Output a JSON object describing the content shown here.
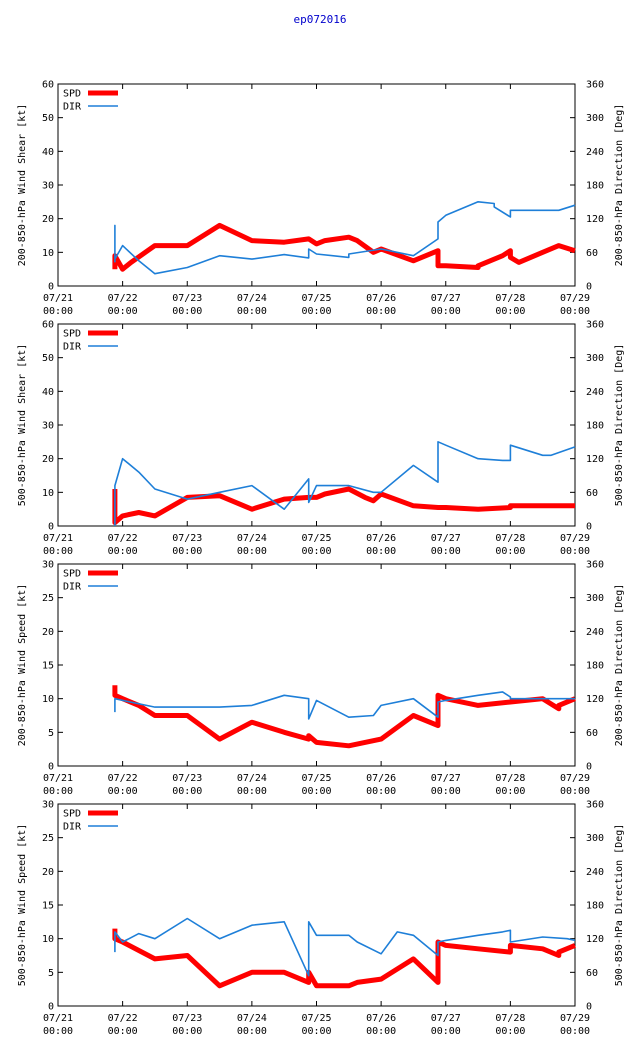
{
  "title": "ep072016",
  "colors": {
    "spd": "#ff0000",
    "dir": "#1e7fd8",
    "frame": "#000000",
    "title": "#0000cc"
  },
  "x_ticks": [
    {
      "line1": "07/21",
      "line2": "00:00",
      "t": 0
    },
    {
      "line1": "07/22",
      "line2": "00:00",
      "t": 1
    },
    {
      "line1": "07/23",
      "line2": "00:00",
      "t": 2
    },
    {
      "line1": "07/24",
      "line2": "00:00",
      "t": 3
    },
    {
      "line1": "07/25",
      "line2": "00:00",
      "t": 4
    },
    {
      "line1": "07/26",
      "line2": "00:00",
      "t": 5
    },
    {
      "line1": "07/27",
      "line2": "00:00",
      "t": 6
    },
    {
      "line1": "07/28",
      "line2": "00:00",
      "t": 7
    },
    {
      "line1": "07/29",
      "line2": "00:00",
      "t": 8
    }
  ],
  "chart_data": [
    {
      "type": "line",
      "ylabel": "200-850-hPa Wind Shear [kt]",
      "y2label": "200-850-hPa Direction [Deg]",
      "xlim": [
        0,
        8
      ],
      "ylim": [
        0,
        60
      ],
      "yticks": [
        0,
        10,
        20,
        30,
        40,
        50,
        60
      ],
      "y2lim": [
        0,
        360
      ],
      "y2ticks": [
        0,
        60,
        120,
        180,
        240,
        300,
        360
      ],
      "legend": [
        "SPD",
        "DIR"
      ],
      "series": [
        {
          "name": "SPD",
          "axis": "left",
          "x": [
            0.88,
            0.88,
            1.0,
            1.13,
            1.5,
            2.0,
            2.5,
            3.0,
            3.5,
            3.88,
            4.0,
            4.13,
            4.5,
            4.63,
            4.88,
            5.0,
            5.5,
            5.88,
            5.88,
            6.0,
            6.5,
            6.5,
            6.88,
            7.0,
            7.0,
            7.13,
            7.5,
            7.75,
            8.0
          ],
          "y": [
            5,
            9,
            5,
            7,
            12,
            12,
            18,
            13.5,
            13,
            14,
            12.5,
            13.5,
            14.5,
            13.5,
            10,
            11,
            7.5,
            10.5,
            6,
            6,
            5.5,
            6,
            9,
            10.5,
            8.5,
            7,
            10,
            12,
            10.5
          ]
        },
        {
          "name": "DIR",
          "axis": "right",
          "x": [
            0.88,
            0.88,
            0.88,
            1.0,
            1.25,
            1.5,
            2.0,
            2.5,
            3.0,
            3.5,
            3.88,
            3.88,
            4.0,
            4.5,
            4.5,
            5.0,
            5.5,
            5.88,
            5.88,
            6.0,
            6.5,
            6.75,
            6.75,
            7.0,
            7.0,
            7.25,
            7.75,
            8.0
          ],
          "y": [
            42,
            108,
            48,
            72,
            45,
            22,
            33,
            54,
            48,
            56,
            50,
            66,
            57,
            51,
            57,
            66,
            54,
            84,
            114,
            126,
            150,
            147,
            141,
            123,
            135,
            135,
            135,
            144
          ]
        }
      ]
    },
    {
      "type": "line",
      "ylabel": "500-850-hPa Wind Shear [kt]",
      "y2label": "500-850-hPa Direction [Deg]",
      "xlim": [
        0,
        8
      ],
      "ylim": [
        0,
        60
      ],
      "yticks": [
        0,
        10,
        20,
        30,
        40,
        50,
        60
      ],
      "y2lim": [
        0,
        360
      ],
      "y2ticks": [
        0,
        60,
        120,
        180,
        240,
        300,
        360
      ],
      "legend": [
        "SPD",
        "DIR"
      ],
      "series": [
        {
          "name": "SPD",
          "axis": "left",
          "x": [
            0.88,
            0.88,
            1.0,
            1.25,
            1.5,
            2.0,
            2.5,
            3.0,
            3.5,
            3.88,
            4.0,
            4.13,
            4.5,
            4.75,
            4.88,
            5.0,
            5.5,
            5.88,
            6.0,
            6.5,
            7.0,
            7.0,
            7.25,
            7.5,
            8.0
          ],
          "y": [
            11,
            1,
            3,
            4,
            3,
            8.5,
            9,
            5,
            8,
            8.5,
            8.5,
            9.5,
            11,
            8.5,
            7.5,
            9.5,
            6,
            5.5,
            5.5,
            5,
            5.5,
            6,
            6,
            6,
            6
          ]
        },
        {
          "name": "DIR",
          "axis": "right",
          "x": [
            0.88,
            0.88,
            1.0,
            1.25,
            1.5,
            2.0,
            2.5,
            3.0,
            3.5,
            3.88,
            3.88,
            4.0,
            4.5,
            4.88,
            5.0,
            5.5,
            5.88,
            5.88,
            6.0,
            6.5,
            6.88,
            6.88,
            7.0,
            7.0,
            7.5,
            7.63,
            8.0
          ],
          "y": [
            0,
            72,
            120,
            96,
            66,
            48,
            60,
            72,
            30,
            84,
            42,
            72,
            72,
            60,
            60,
            108,
            78,
            150,
            144,
            120,
            117,
            117,
            117,
            144,
            126,
            126,
            141
          ]
        }
      ]
    },
    {
      "type": "line",
      "ylabel": "200-850-hPa Wind Speed [kt]",
      "y2label": "200-850-hPa Direction [Deg]",
      "xlim": [
        0,
        8
      ],
      "ylim": [
        0,
        30
      ],
      "yticks": [
        0,
        5,
        10,
        15,
        20,
        25,
        30
      ],
      "y2lim": [
        0,
        360
      ],
      "y2ticks": [
        0,
        60,
        120,
        180,
        240,
        300,
        360
      ],
      "legend": [
        "SPD",
        "DIR"
      ],
      "series": [
        {
          "name": "SPD",
          "axis": "left",
          "x": [
            0.88,
            0.88,
            1.0,
            1.25,
            1.5,
            2.0,
            2.5,
            3.0,
            3.5,
            3.88,
            3.88,
            4.0,
            4.5,
            5.0,
            5.5,
            5.88,
            5.88,
            6.0,
            6.5,
            7.0,
            7.0,
            7.5,
            7.75,
            7.75,
            8.0
          ],
          "y": [
            12,
            10.5,
            10,
            9,
            7.5,
            7.5,
            4,
            6.5,
            5,
            4,
            4.5,
            3.5,
            3,
            4,
            7.5,
            6,
            10.5,
            10,
            9,
            9.5,
            9.5,
            10,
            8.5,
            9,
            10
          ]
        },
        {
          "name": "DIR",
          "axis": "right",
          "x": [
            0.88,
            0.88,
            1.0,
            1.5,
            2.0,
            2.5,
            3.0,
            3.5,
            3.88,
            3.88,
            4.0,
            4.5,
            4.88,
            5.0,
            5.5,
            5.88,
            5.88,
            6.0,
            6.5,
            6.88,
            7.0,
            7.0,
            7.5,
            7.88,
            8.0
          ],
          "y": [
            96,
            120,
            117,
            105,
            105,
            105,
            108,
            126,
            120,
            84,
            117,
            87,
            90,
            108,
            120,
            87,
            114,
            117,
            126,
            132,
            123,
            120,
            120,
            120,
            120
          ]
        }
      ]
    },
    {
      "type": "line",
      "ylabel": "500-850-hPa Wind Speed [kt]",
      "y2label": "500-850-hPa Direction [Deg]",
      "xlim": [
        0,
        8
      ],
      "ylim": [
        0,
        30
      ],
      "yticks": [
        0,
        5,
        10,
        15,
        20,
        25,
        30
      ],
      "y2lim": [
        0,
        360
      ],
      "y2ticks": [
        0,
        60,
        120,
        180,
        240,
        300,
        360
      ],
      "legend": [
        "SPD",
        "DIR"
      ],
      "series": [
        {
          "name": "SPD",
          "axis": "left",
          "x": [
            0.88,
            0.88,
            1.0,
            1.5,
            2.0,
            2.5,
            3.0,
            3.5,
            3.88,
            3.88,
            4.0,
            4.13,
            4.5,
            4.63,
            5.0,
            5.5,
            5.88,
            5.88,
            6.0,
            6.5,
            7.0,
            7.0,
            7.5,
            7.75,
            7.75,
            8.0
          ],
          "y": [
            11.5,
            10,
            9.5,
            7,
            7.5,
            3,
            5,
            5,
            3.5,
            5,
            3,
            3,
            3,
            3.5,
            4,
            7,
            3.5,
            9.5,
            9,
            8.5,
            8,
            9,
            8.5,
            7.5,
            8,
            9
          ]
        },
        {
          "name": "DIR",
          "axis": "right",
          "x": [
            0.88,
            0.88,
            1.0,
            1.25,
            1.5,
            2.0,
            2.5,
            3.0,
            3.5,
            3.88,
            3.88,
            4.0,
            4.5,
            4.63,
            5.0,
            5.25,
            5.5,
            5.88,
            5.88,
            6.0,
            6.5,
            6.88,
            7.0,
            7.0,
            7.5,
            7.88,
            8.0
          ],
          "y": [
            96,
            132,
            114,
            129,
            120,
            156,
            120,
            144,
            150,
            54,
            150,
            126,
            126,
            114,
            93,
            132,
            126,
            90,
            114,
            117,
            126,
            132,
            135,
            114,
            123,
            120,
            117
          ]
        }
      ]
    }
  ]
}
